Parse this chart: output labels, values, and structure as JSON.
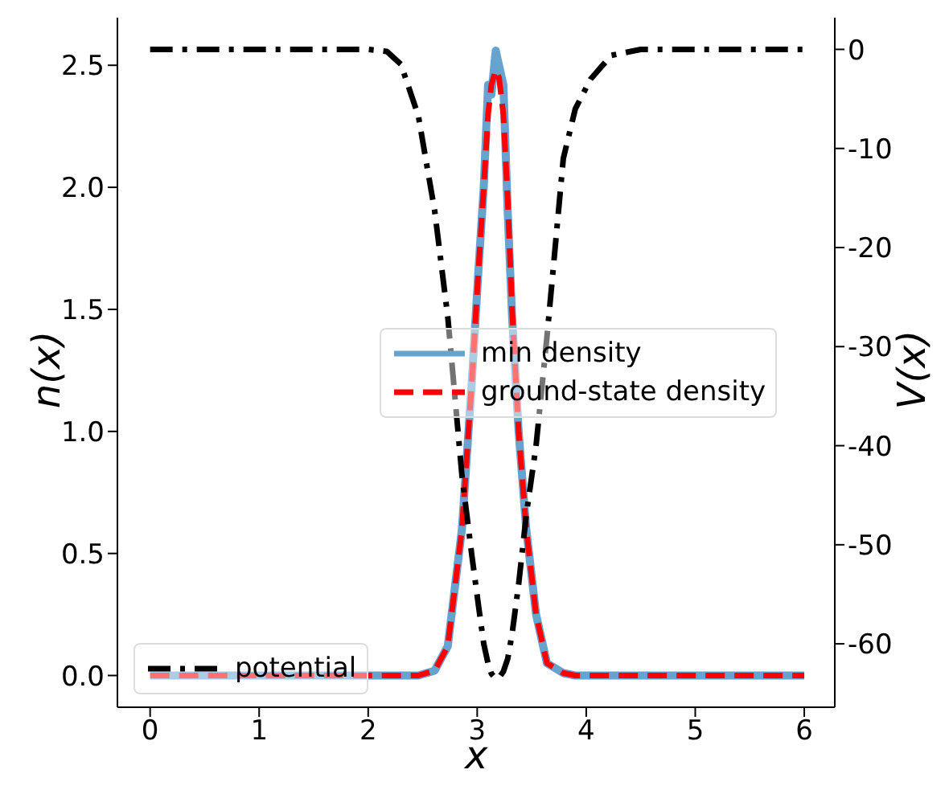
{
  "chart_data": {
    "type": "line",
    "xlabel": "x",
    "ylabel": "n(x)",
    "y2label": "V(x)",
    "x": [
      0,
      0.5,
      1,
      1.5,
      2,
      2.17,
      2.3,
      2.46,
      2.61,
      2.73,
      2.86,
      2.95,
      3.01,
      3.06,
      3.1,
      3.13,
      3.17,
      3.2,
      3.24,
      3.28,
      3.32,
      3.38,
      3.45,
      3.54,
      3.64,
      3.79,
      3.9,
      4.04,
      4.23,
      4.5,
      5,
      5.5,
      6
    ],
    "series": [
      {
        "name": "min density",
        "color": "#66a3cf",
        "line_style": "solid",
        "values": [
          0,
          0,
          0,
          0,
          0,
          0,
          0,
          0,
          0.02,
          0.12,
          0.6,
          1.2,
          1.65,
          2.0,
          2.42,
          2.38,
          2.56,
          2.5,
          2.42,
          1.9,
          1.47,
          1.0,
          0.6,
          0.25,
          0.05,
          0.01,
          0,
          0,
          0,
          0,
          0,
          0,
          0
        ]
      },
      {
        "name": "ground-state density",
        "color": "#ff0000",
        "line_style": "dashed",
        "values": [
          0,
          0,
          0,
          0,
          0,
          0,
          0,
          0,
          0.02,
          0.12,
          0.6,
          1.2,
          1.65,
          2.0,
          2.3,
          2.42,
          2.48,
          2.45,
          2.3,
          1.95,
          1.5,
          1.0,
          0.6,
          0.25,
          0.05,
          0.01,
          0,
          0,
          0,
          0,
          0,
          0,
          0
        ]
      },
      {
        "name": "potential",
        "color": "#000000",
        "line_style": "dashdot",
        "axis": "y2",
        "values": [
          0,
          0,
          0,
          0,
          0,
          -0.2,
          -1.5,
          -6.7,
          -16.3,
          -27,
          -43,
          -51,
          -56,
          -60,
          -62,
          -63,
          -63.5,
          -63.4,
          -62.8,
          -61.5,
          -59,
          -54,
          -47,
          -40,
          -29,
          -11,
          -6,
          -3,
          -0.6,
          0,
          0,
          0,
          0
        ]
      }
    ],
    "xlim": [
      -0.3,
      6.28
    ],
    "xticks": [
      0,
      1,
      2,
      3,
      4,
      5,
      6
    ],
    "ylim": [
      -0.13,
      2.695
    ],
    "yticks": [
      {
        "value": 0,
        "label": "0.0"
      },
      {
        "value": 0.5,
        "label": "0.5"
      },
      {
        "value": 1,
        "label": "1.0"
      },
      {
        "value": 1.5,
        "label": "1.5"
      },
      {
        "value": 2,
        "label": "2.0"
      },
      {
        "value": 2.5,
        "label": "2.5"
      }
    ],
    "y2lim": [
      -66.4,
      3.2
    ],
    "y2ticks": [
      0,
      -10,
      -20,
      -30,
      -40,
      -50,
      -60
    ],
    "legend": "right",
    "grid": false,
    "marker": "none"
  }
}
